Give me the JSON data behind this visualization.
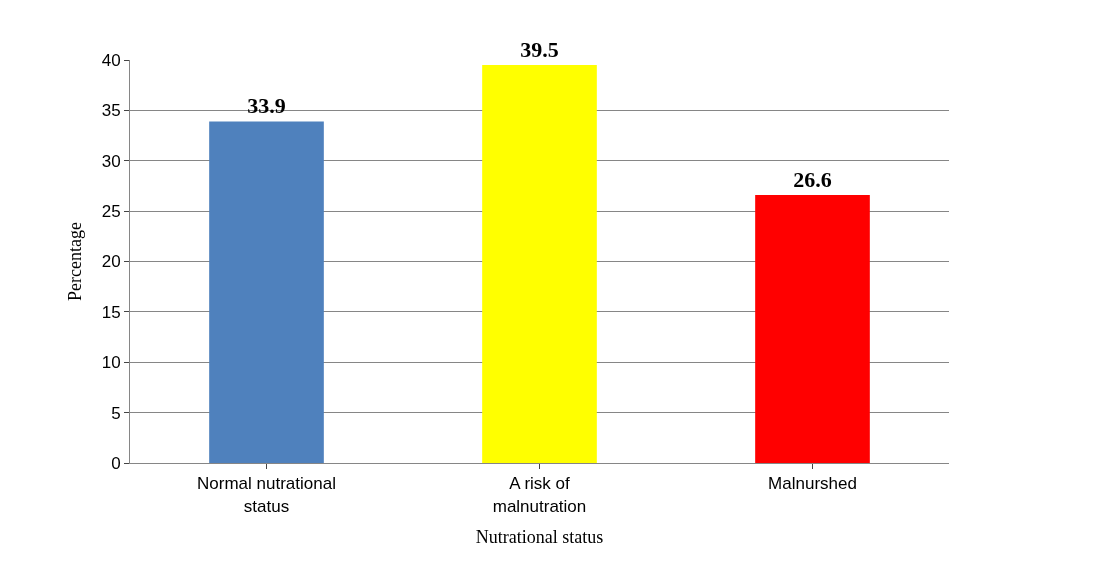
{
  "chart_data": {
    "type": "bar",
    "categories": [
      "Normal nutrational status",
      "A risk of malnutration",
      "Malnurshed"
    ],
    "values": [
      33.9,
      39.5,
      26.6
    ],
    "colors": [
      "#4f81bd",
      "#ffff00",
      "#ff0000"
    ],
    "xlabel": "Nutrational status",
    "ylabel": "Percentage",
    "ylim": [
      0,
      40
    ],
    "yticks": [
      0,
      5,
      10,
      15,
      20,
      25,
      30,
      35,
      40
    ],
    "grid": "y",
    "data_labels": true
  }
}
